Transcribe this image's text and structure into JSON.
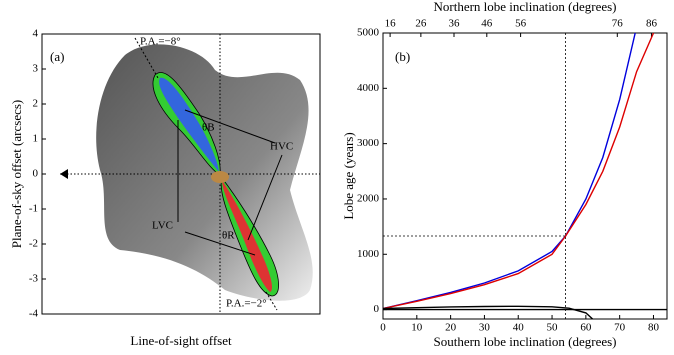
{
  "chart_data": [
    {
      "type": "diagram",
      "panel_label": "(a)",
      "ylabel": "Plane-of-sky offset (arcsecs)",
      "xlabel": "Line-of-sight offset",
      "ylim": [
        -4,
        4
      ],
      "yticks": [
        -4,
        -3,
        -2,
        -1,
        0,
        1,
        2,
        3,
        4
      ],
      "annotations": [
        "P.A.=−8°",
        "P.A.=−2°",
        "HVC",
        "LVC",
        "θB",
        "θR"
      ]
    },
    {
      "type": "line",
      "panel_label": "(b)",
      "ylabel": "Lobe age (years)",
      "xlabel": "Southern lobe inclination (degrees)",
      "x2label": "Northern lobe inclination (degrees)",
      "xlim": [
        0,
        84
      ],
      "ylim": [
        -170,
        5000
      ],
      "xticks": [
        0,
        10,
        20,
        30,
        40,
        50,
        60,
        70,
        80
      ],
      "x2ticks": [
        {
          "value": 2.1,
          "label": "16"
        },
        {
          "value": 11.2,
          "label": "26"
        },
        {
          "value": 21,
          "label": "36"
        },
        {
          "value": 30.7,
          "label": "46"
        },
        {
          "value": 40.7,
          "label": "56"
        },
        {
          "value": 69.3,
          "label": "76"
        },
        {
          "value": 79.4,
          "label": "86"
        }
      ],
      "yticks": [
        0,
        1000,
        2000,
        3000,
        4000,
        5000
      ],
      "vlines": [
        54
      ],
      "hlines": [
        1330
      ],
      "series": [
        {
          "color": "#0000dd",
          "x": [
            0,
            10,
            20,
            30,
            40,
            50,
            54,
            60,
            65,
            70,
            74.6
          ],
          "values": [
            20,
            160,
            310,
            480,
            700,
            1050,
            1330,
            2000,
            2750,
            3800,
            5000
          ]
        },
        {
          "color": "#dd0000",
          "x": [
            0,
            10,
            20,
            30,
            40,
            50,
            54,
            60,
            65,
            70,
            75,
            80
          ],
          "values": [
            20,
            150,
            290,
            450,
            650,
            1000,
            1330,
            1900,
            2500,
            3300,
            4300,
            5000
          ]
        },
        {
          "color": "#000000",
          "x": [
            0,
            84
          ],
          "values": [
            0,
            0
          ]
        },
        {
          "color": "#000000",
          "x": [
            0,
            10,
            20,
            30,
            40,
            50,
            55,
            60,
            62
          ],
          "values": [
            20,
            35,
            48,
            56,
            60,
            50,
            25,
            -60,
            -170
          ]
        }
      ]
    }
  ]
}
